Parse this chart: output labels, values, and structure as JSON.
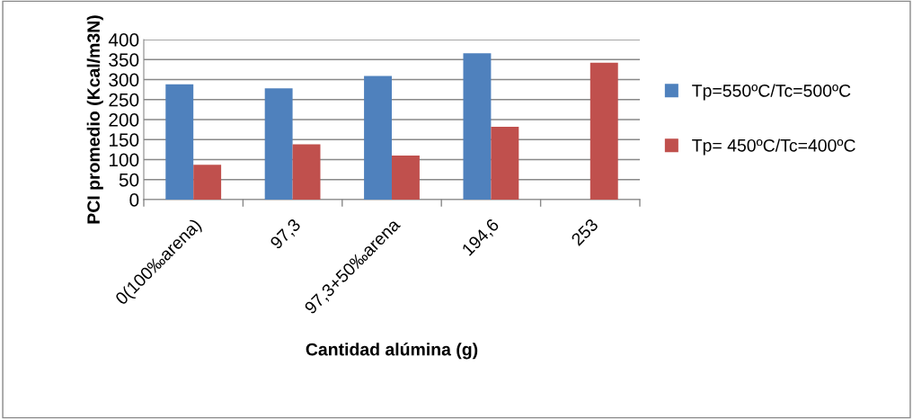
{
  "chart_data": {
    "type": "bar",
    "xlabel": "Cantidad alúmina (g)",
    "ylabel": "PCI promedio (Kcal/m3N)",
    "categories": [
      "0(100‰arena)",
      "97,3",
      "97,3+50‰arena",
      "194,6",
      "253"
    ],
    "series": [
      {
        "name": "Tp=550ºC/Tc=500ºC",
        "color": "#4f81bd",
        "values": [
          288,
          278,
          309,
          366,
          null
        ]
      },
      {
        "name": "Tp= 450ºC/Tc=400ºC",
        "color": "#c0504d",
        "values": [
          87,
          138,
          110,
          182,
          342
        ]
      }
    ],
    "ylim": [
      0,
      400
    ],
    "yticks": [
      0,
      50,
      100,
      150,
      200,
      250,
      300,
      350,
      400
    ],
    "grid": "y",
    "legend": "right"
  }
}
